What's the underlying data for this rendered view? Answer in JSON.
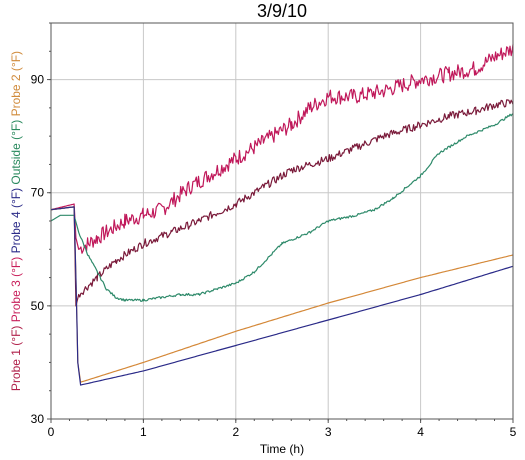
{
  "chart_data": {
    "type": "line",
    "title": "3/9/10",
    "xlabel": "Time (h)",
    "xlim": [
      0,
      5
    ],
    "ylim": [
      30,
      100
    ],
    "x_ticks": [
      0,
      1,
      2,
      3,
      4,
      5
    ],
    "y_ticks": [
      30,
      50,
      70,
      90
    ],
    "grid": true,
    "legend": "none",
    "ylabel_parts": [
      {
        "text": "Probe 1 (°F)",
        "color": "#b0204a"
      },
      {
        "text": "Probe 3 (°F)",
        "color": "#c81e5a"
      },
      {
        "text": "Probe 4 (°F)",
        "color": "#2a2a88"
      },
      {
        "text": "Outside (°F)",
        "color": "#2a8a5e"
      },
      {
        "text": "Probe 2 (°F)",
        "color": "#d08a3a"
      }
    ],
    "series": [
      {
        "name": "Probe 1 (°F)",
        "color": "#c0185a",
        "noise": 1.4,
        "x": [
          0,
          0.25,
          0.27,
          0.3,
          0.4,
          0.5,
          0.6,
          0.8,
          1.0,
          1.2,
          1.5,
          1.8,
          2.0,
          2.3,
          2.6,
          2.8,
          3.0,
          3.3,
          3.6,
          4.0,
          4.3,
          4.6,
          4.8,
          5.0
        ],
        "y": [
          67,
          68,
          62,
          60,
          61,
          62,
          63,
          65,
          66,
          67,
          71,
          74,
          76,
          79,
          82,
          85,
          87,
          87,
          88,
          90,
          91,
          92,
          94,
          95.5
        ]
      },
      {
        "name": "Probe 3 (°F)",
        "color": "#7a1a3a",
        "noise": 0.7,
        "x": [
          0,
          0.25,
          0.27,
          0.3,
          0.5,
          0.7,
          1.0,
          1.3,
          1.6,
          2.0,
          2.3,
          2.6,
          3.0,
          3.3,
          3.6,
          4.0,
          4.3,
          4.6,
          4.8,
          5.0
        ],
        "y": [
          67,
          67.5,
          50,
          52,
          55,
          58,
          61,
          63,
          65,
          68,
          71,
          74,
          76,
          78,
          80,
          82,
          83.5,
          84.5,
          85.5,
          86
        ]
      },
      {
        "name": "Outside (°F)",
        "color": "#2e8a6a",
        "noise": 0.2,
        "x": [
          0,
          0.1,
          0.25,
          0.3,
          0.4,
          0.5,
          0.6,
          0.7,
          0.8,
          1.0,
          1.2,
          1.4,
          1.6,
          1.8,
          2.0,
          2.2,
          2.5,
          2.8,
          3.0,
          3.3,
          3.5,
          3.7,
          4.0,
          4.2,
          4.5,
          4.8,
          5.0
        ],
        "y": [
          65,
          66,
          66,
          63,
          59,
          56,
          53,
          51.5,
          51,
          51,
          51.5,
          52,
          52,
          53,
          54,
          56,
          61,
          63,
          65,
          66,
          67,
          69,
          73,
          77,
          80,
          82,
          84
        ]
      },
      {
        "name": "Probe 2 (°F)",
        "color": "#d48838",
        "noise": 0,
        "x": [
          0,
          0.25,
          0.27,
          0.29,
          0.32,
          1.0,
          2.0,
          3.0,
          4.0,
          5.0
        ],
        "y": [
          67,
          67.5,
          55,
          40,
          36.5,
          40,
          45.5,
          50.5,
          55,
          59
        ]
      },
      {
        "name": "Probe 4 (°F)",
        "color": "#2a2a88",
        "noise": 0,
        "x": [
          0,
          0.25,
          0.27,
          0.29,
          0.32,
          1.0,
          2.0,
          3.0,
          4.0,
          5.0
        ],
        "y": [
          67,
          67.5,
          55,
          40,
          36,
          38.5,
          43,
          47.5,
          52,
          57
        ]
      }
    ]
  }
}
